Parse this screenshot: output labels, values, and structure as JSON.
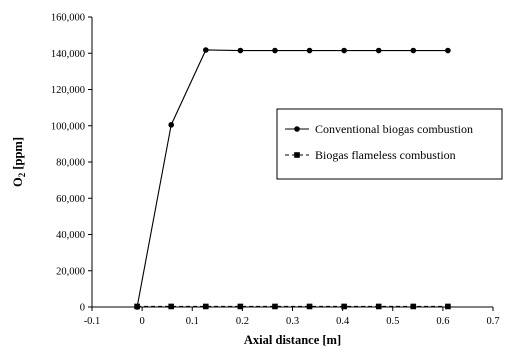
{
  "chart_data": {
    "type": "line",
    "xlabel": "Axial distance [m]",
    "ylabel_main": "O",
    "ylabel_sub": "2",
    "ylabel_rest": " [ppm]",
    "xlim": [
      -0.1,
      0.7
    ],
    "ylim": [
      0,
      160000
    ],
    "x_ticks": [
      -0.1,
      0,
      0.1,
      0.2,
      0.3,
      0.4,
      0.5,
      0.6,
      0.7
    ],
    "x_tick_labels": [
      "-0.1",
      "0",
      "0.1",
      "0.2",
      "0.3",
      "0.4",
      "0.5",
      "0.6",
      "0.7"
    ],
    "y_ticks": [
      0,
      20000,
      40000,
      60000,
      80000,
      100000,
      120000,
      140000,
      160000
    ],
    "y_tick_labels": [
      "0",
      "20,000",
      "40,000",
      "60,000",
      "80,000",
      "100,000",
      "120,000",
      "140,000",
      "160,000"
    ],
    "grid": false,
    "legend_position": "right-middle",
    "series": [
      {
        "name": "Conventional biogas combustion",
        "marker": "circle",
        "line_style": "solid",
        "color": "#000000",
        "x": [
          -0.01,
          0.058,
          0.127,
          0.196,
          0.265,
          0.334,
          0.403,
          0.472,
          0.541,
          0.61
        ],
        "y": [
          0,
          100500,
          141800,
          141500,
          141500,
          141500,
          141500,
          141500,
          141500,
          141500
        ]
      },
      {
        "name": "Biogas flameless combustion",
        "marker": "square",
        "line_style": "dashed",
        "color": "#000000",
        "x": [
          -0.01,
          0.058,
          0.127,
          0.196,
          0.265,
          0.334,
          0.403,
          0.472,
          0.541,
          0.61
        ],
        "y": [
          300,
          300,
          300,
          300,
          300,
          300,
          300,
          300,
          300,
          300
        ]
      }
    ]
  }
}
